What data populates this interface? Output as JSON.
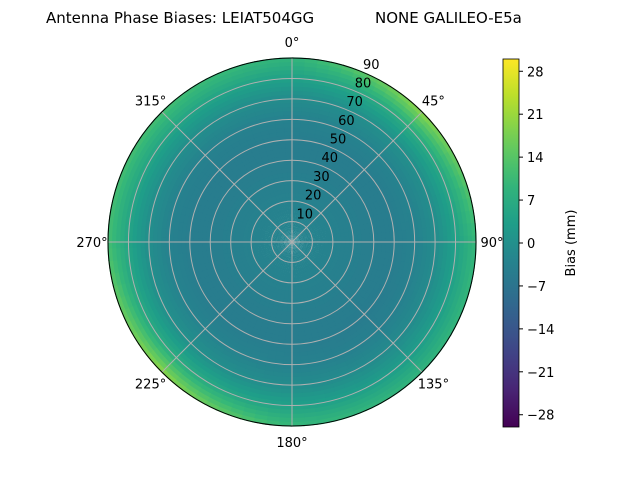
{
  "chart_data": {
    "type": "heatmap",
    "projection": "polar",
    "title_left": "Antenna Phase Biases: LEIAT504GG",
    "title_right": "NONE GALILEO-E5a",
    "theta_zero": "north",
    "theta_direction": "clockwise",
    "theta_ticks": [
      0,
      45,
      90,
      135,
      180,
      225,
      270,
      315
    ],
    "theta_tick_labels": [
      "0°",
      "45°",
      "90°",
      "135°",
      "180°",
      "225°",
      "270°",
      "315°"
    ],
    "r_range": [
      0,
      90
    ],
    "r_ticks": [
      10,
      20,
      30,
      40,
      50,
      60,
      70,
      80,
      90
    ],
    "r_tick_labels": [
      "10",
      "20",
      "30",
      "40",
      "50",
      "60",
      "70",
      "80",
      "90"
    ],
    "grid": true,
    "colormap": "viridis",
    "colorbar": {
      "label": "Bias (mm)",
      "range": [
        -30,
        30
      ],
      "ticks": [
        28,
        21,
        14,
        7,
        0,
        -7,
        -14,
        -21,
        -28
      ],
      "tick_labels": [
        "28",
        "21",
        "14",
        "7",
        "0",
        "−7",
        "−14",
        "−21",
        "−28"
      ]
    },
    "zenith": [
      0,
      10,
      20,
      30,
      40,
      50,
      60,
      70,
      80,
      90
    ],
    "azimuth": [
      0,
      45,
      90,
      135,
      180,
      225,
      270,
      315
    ],
    "values_mm": [
      [
        -3,
        -3,
        -3,
        -3,
        -3,
        -3,
        -3,
        -3
      ],
      [
        -3,
        -3,
        -3,
        -3,
        -3,
        -3,
        -3,
        -3
      ],
      [
        -3.5,
        -3.5,
        -3.5,
        -3.5,
        -3.5,
        -3.5,
        -3.5,
        -3.5
      ],
      [
        -4,
        -4,
        -4,
        -4,
        -4,
        -4,
        -4,
        -4
      ],
      [
        -4.5,
        -4.5,
        -4.5,
        -4.5,
        -4.5,
        -4.5,
        -4.5,
        -4.5
      ],
      [
        -4.5,
        -4.5,
        -4.5,
        -5,
        -4.5,
        -4.5,
        -4.5,
        -4.5
      ],
      [
        -3.5,
        -3,
        -3.5,
        -4,
        -3.5,
        -3,
        -3.5,
        -3.5
      ],
      [
        -1,
        0,
        -1,
        -1.5,
        -1,
        0,
        -0.5,
        -0.5
      ],
      [
        4,
        7,
        4,
        3,
        4,
        7,
        5,
        5
      ],
      [
        9,
        20,
        10,
        9,
        10,
        20,
        12,
        12
      ]
    ]
  }
}
